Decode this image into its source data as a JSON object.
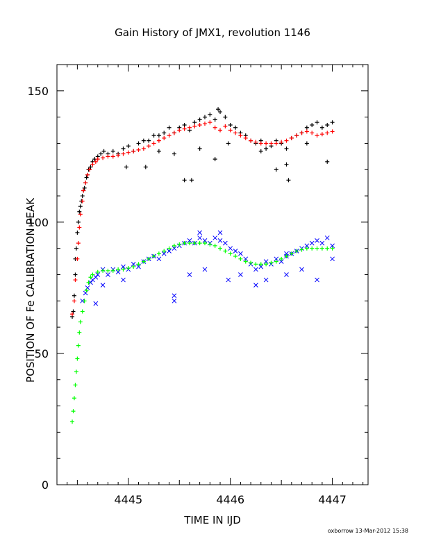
{
  "chart_data": {
    "type": "scatter",
    "title": "Gain History of JMX1, revolution 1146",
    "xlabel": "TIME IN IJD",
    "ylabel": "POSITION OF Fe CALIBRATION PEAK",
    "xlim": [
      4444.3,
      4447.35
    ],
    "ylim": [
      0,
      160
    ],
    "x_ticks": [
      4445,
      4446,
      4447
    ],
    "x_tick_labels": [
      "4445",
      "4446",
      "4447"
    ],
    "y_ticks": [
      0,
      50,
      100,
      150
    ],
    "y_tick_labels": [
      "0",
      "50",
      "100",
      "150"
    ],
    "grid": false,
    "legend": "none",
    "series": [
      {
        "marker": "plus",
        "color": "#000000",
        "points": [
          [
            4444.45,
            64
          ],
          [
            4444.46,
            66
          ],
          [
            4444.47,
            72
          ],
          [
            4444.48,
            80
          ],
          [
            4444.48,
            86
          ],
          [
            4444.49,
            90
          ],
          [
            4444.5,
            96
          ],
          [
            4444.51,
            100
          ],
          [
            4444.52,
            104
          ],
          [
            4444.53,
            106
          ],
          [
            4444.54,
            108
          ],
          [
            4444.55,
            110
          ],
          [
            4444.56,
            112
          ],
          [
            4444.57,
            113
          ],
          [
            4444.58,
            115
          ],
          [
            4444.59,
            117
          ],
          [
            4444.6,
            118
          ],
          [
            4444.61,
            120
          ],
          [
            4444.63,
            121
          ],
          [
            4444.65,
            123
          ],
          [
            4444.67,
            124
          ],
          [
            4444.7,
            125
          ],
          [
            4444.73,
            126
          ],
          [
            4444.76,
            127
          ],
          [
            4444.8,
            126
          ],
          [
            4444.85,
            127
          ],
          [
            4444.9,
            126
          ],
          [
            4444.95,
            128
          ],
          [
            4445.0,
            129
          ],
          [
            4445.05,
            127
          ],
          [
            4445.1,
            130
          ],
          [
            4445.15,
            131
          ],
          [
            4445.2,
            131
          ],
          [
            4445.25,
            133
          ],
          [
            4445.3,
            133
          ],
          [
            4445.35,
            134
          ],
          [
            4445.4,
            136
          ],
          [
            4445.45,
            134
          ],
          [
            4445.5,
            136
          ],
          [
            4445.55,
            137
          ],
          [
            4445.6,
            135
          ],
          [
            4445.65,
            138
          ],
          [
            4445.7,
            139
          ],
          [
            4445.75,
            140
          ],
          [
            4445.8,
            141
          ],
          [
            4445.85,
            139
          ],
          [
            4445.9,
            142
          ],
          [
            4445.95,
            140
          ],
          [
            4446.0,
            137
          ],
          [
            4446.05,
            136
          ],
          [
            4446.1,
            134
          ],
          [
            4446.15,
            133
          ],
          [
            4446.2,
            131
          ],
          [
            4446.25,
            130
          ],
          [
            4446.3,
            131
          ],
          [
            4446.35,
            128
          ],
          [
            4446.4,
            129
          ],
          [
            4446.45,
            131
          ],
          [
            4446.5,
            130
          ],
          [
            4446.55,
            128
          ],
          [
            4446.6,
            132
          ],
          [
            4446.65,
            133
          ],
          [
            4446.7,
            134
          ],
          [
            4446.75,
            136
          ],
          [
            4446.8,
            137
          ],
          [
            4446.85,
            138
          ],
          [
            4446.9,
            136
          ],
          [
            4446.95,
            137
          ],
          [
            4447.0,
            138
          ],
          [
            4444.98,
            121
          ],
          [
            4445.17,
            121
          ],
          [
            4445.55,
            116
          ],
          [
            4445.62,
            116
          ],
          [
            4445.98,
            130
          ],
          [
            4446.45,
            120
          ],
          [
            4446.55,
            122
          ],
          [
            4446.57,
            116
          ],
          [
            4446.95,
            123
          ],
          [
            4445.3,
            127
          ],
          [
            4445.85,
            124
          ],
          [
            4446.3,
            127
          ],
          [
            4446.75,
            130
          ],
          [
            4445.45,
            126
          ],
          [
            4445.88,
            143
          ],
          [
            4445.7,
            128
          ]
        ]
      },
      {
        "marker": "plus",
        "color": "#ff0000",
        "points": [
          [
            4444.45,
            65
          ],
          [
            4444.47,
            70
          ],
          [
            4444.48,
            78
          ],
          [
            4444.5,
            86
          ],
          [
            4444.51,
            92
          ],
          [
            4444.52,
            98
          ],
          [
            4444.53,
            103
          ],
          [
            4444.55,
            108
          ],
          [
            4444.56,
            112
          ],
          [
            4444.58,
            115
          ],
          [
            4444.6,
            118
          ],
          [
            4444.62,
            120
          ],
          [
            4444.65,
            122
          ],
          [
            4444.68,
            123
          ],
          [
            4444.7,
            124
          ],
          [
            4444.75,
            124.5
          ],
          [
            4444.8,
            125
          ],
          [
            4444.85,
            125
          ],
          [
            4444.9,
            125.5
          ],
          [
            4444.95,
            126
          ],
          [
            4445.0,
            126.5
          ],
          [
            4445.05,
            127
          ],
          [
            4445.1,
            127.5
          ],
          [
            4445.15,
            128
          ],
          [
            4445.2,
            129
          ],
          [
            4445.25,
            130
          ],
          [
            4445.3,
            131
          ],
          [
            4445.35,
            132
          ],
          [
            4445.4,
            133
          ],
          [
            4445.45,
            134
          ],
          [
            4445.5,
            135
          ],
          [
            4445.55,
            135.5
          ],
          [
            4445.6,
            136
          ],
          [
            4445.65,
            136.5
          ],
          [
            4445.7,
            137
          ],
          [
            4445.75,
            137.5
          ],
          [
            4445.8,
            138
          ],
          [
            4445.85,
            136
          ],
          [
            4445.9,
            135
          ],
          [
            4445.95,
            136.5
          ],
          [
            4446.0,
            135
          ],
          [
            4446.05,
            134
          ],
          [
            4446.1,
            133
          ],
          [
            4446.15,
            132
          ],
          [
            4446.2,
            131
          ],
          [
            4446.25,
            130.5
          ],
          [
            4446.3,
            130
          ],
          [
            4446.35,
            130
          ],
          [
            4446.4,
            130
          ],
          [
            4446.45,
            130
          ],
          [
            4446.5,
            130.5
          ],
          [
            4446.55,
            131
          ],
          [
            4446.6,
            132
          ],
          [
            4446.65,
            133
          ],
          [
            4446.7,
            134
          ],
          [
            4446.75,
            134.5
          ],
          [
            4446.8,
            134
          ],
          [
            4446.85,
            133
          ],
          [
            4446.9,
            133.5
          ],
          [
            4446.95,
            134
          ],
          [
            4447.0,
            134.5
          ]
        ]
      },
      {
        "marker": "cross",
        "color": "#0000ff",
        "points": [
          [
            4444.55,
            70
          ],
          [
            4444.58,
            73
          ],
          [
            4444.6,
            75
          ],
          [
            4444.63,
            77
          ],
          [
            4444.65,
            78
          ],
          [
            4444.68,
            79
          ],
          [
            4444.7,
            80
          ],
          [
            4444.75,
            82
          ],
          [
            4444.8,
            80
          ],
          [
            4444.85,
            82
          ],
          [
            4444.9,
            81
          ],
          [
            4444.95,
            83
          ],
          [
            4445.0,
            82
          ],
          [
            4445.05,
            84
          ],
          [
            4445.1,
            83
          ],
          [
            4445.15,
            85
          ],
          [
            4445.2,
            86
          ],
          [
            4445.25,
            87
          ],
          [
            4445.3,
            86
          ],
          [
            4445.35,
            88
          ],
          [
            4445.4,
            89
          ],
          [
            4445.45,
            90
          ],
          [
            4445.5,
            91
          ],
          [
            4445.55,
            92
          ],
          [
            4445.6,
            93
          ],
          [
            4445.65,
            92
          ],
          [
            4445.7,
            94
          ],
          [
            4445.75,
            93
          ],
          [
            4445.8,
            92
          ],
          [
            4445.85,
            94
          ],
          [
            4445.9,
            93
          ],
          [
            4445.95,
            92
          ],
          [
            4446.0,
            90
          ],
          [
            4446.05,
            89
          ],
          [
            4446.1,
            88
          ],
          [
            4446.15,
            86
          ],
          [
            4446.2,
            84
          ],
          [
            4446.25,
            82
          ],
          [
            4446.3,
            83
          ],
          [
            4446.35,
            85
          ],
          [
            4446.4,
            84
          ],
          [
            4446.45,
            86
          ],
          [
            4446.5,
            85
          ],
          [
            4446.55,
            87
          ],
          [
            4446.6,
            88
          ],
          [
            4446.65,
            89
          ],
          [
            4446.7,
            90
          ],
          [
            4446.75,
            91
          ],
          [
            4446.8,
            92
          ],
          [
            4446.85,
            93
          ],
          [
            4446.9,
            92
          ],
          [
            4446.95,
            94
          ],
          [
            4447.0,
            91
          ],
          [
            4444.68,
            69
          ],
          [
            4444.75,
            76
          ],
          [
            4444.95,
            78
          ],
          [
            4445.45,
            72
          ],
          [
            4445.45,
            70
          ],
          [
            4445.6,
            80
          ],
          [
            4445.75,
            82
          ],
          [
            4445.98,
            78
          ],
          [
            4446.1,
            80
          ],
          [
            4446.25,
            76
          ],
          [
            4446.35,
            78
          ],
          [
            4446.55,
            80
          ],
          [
            4446.7,
            82
          ],
          [
            4446.85,
            78
          ],
          [
            4447.0,
            86
          ],
          [
            4446.55,
            88
          ],
          [
            4445.7,
            96
          ],
          [
            4445.9,
            96
          ]
        ]
      },
      {
        "marker": "plus",
        "color": "#00ff00",
        "points": [
          [
            4444.45,
            24
          ],
          [
            4444.46,
            28
          ],
          [
            4444.47,
            33
          ],
          [
            4444.48,
            38
          ],
          [
            4444.49,
            43
          ],
          [
            4444.5,
            48
          ],
          [
            4444.51,
            53
          ],
          [
            4444.52,
            58
          ],
          [
            4444.53,
            62
          ],
          [
            4444.55,
            66
          ],
          [
            4444.57,
            70
          ],
          [
            4444.59,
            74
          ],
          [
            4444.61,
            77
          ],
          [
            4444.63,
            79
          ],
          [
            4444.65,
            80
          ],
          [
            4444.7,
            81
          ],
          [
            4444.75,
            81.5
          ],
          [
            4444.8,
            81.5
          ],
          [
            4444.85,
            81.5
          ],
          [
            4444.9,
            82
          ],
          [
            4444.95,
            82
          ],
          [
            4445.0,
            82.5
          ],
          [
            4445.05,
            83
          ],
          [
            4445.1,
            84
          ],
          [
            4445.15,
            85
          ],
          [
            4445.2,
            86
          ],
          [
            4445.25,
            87
          ],
          [
            4445.3,
            88
          ],
          [
            4445.35,
            89
          ],
          [
            4445.4,
            90
          ],
          [
            4445.45,
            91
          ],
          [
            4445.5,
            91.5
          ],
          [
            4445.55,
            92
          ],
          [
            4445.6,
            92
          ],
          [
            4445.65,
            92
          ],
          [
            4445.7,
            92
          ],
          [
            4445.75,
            92
          ],
          [
            4445.8,
            91.5
          ],
          [
            4445.85,
            91
          ],
          [
            4445.9,
            90
          ],
          [
            4445.95,
            89
          ],
          [
            4446.0,
            88
          ],
          [
            4446.05,
            87
          ],
          [
            4446.1,
            86
          ],
          [
            4446.15,
            85
          ],
          [
            4446.2,
            84.5
          ],
          [
            4446.25,
            84
          ],
          [
            4446.3,
            84
          ],
          [
            4446.35,
            84
          ],
          [
            4446.4,
            84.5
          ],
          [
            4446.45,
            85
          ],
          [
            4446.5,
            86
          ],
          [
            4446.55,
            87
          ],
          [
            4446.6,
            88
          ],
          [
            4446.65,
            89
          ],
          [
            4446.7,
            89.5
          ],
          [
            4446.75,
            90
          ],
          [
            4446.8,
            90
          ],
          [
            4446.85,
            90
          ],
          [
            4446.9,
            90
          ],
          [
            4446.95,
            90
          ],
          [
            4447.0,
            90
          ]
        ]
      }
    ]
  },
  "footer": "oxborrow 13-Mar-2012 15:38"
}
